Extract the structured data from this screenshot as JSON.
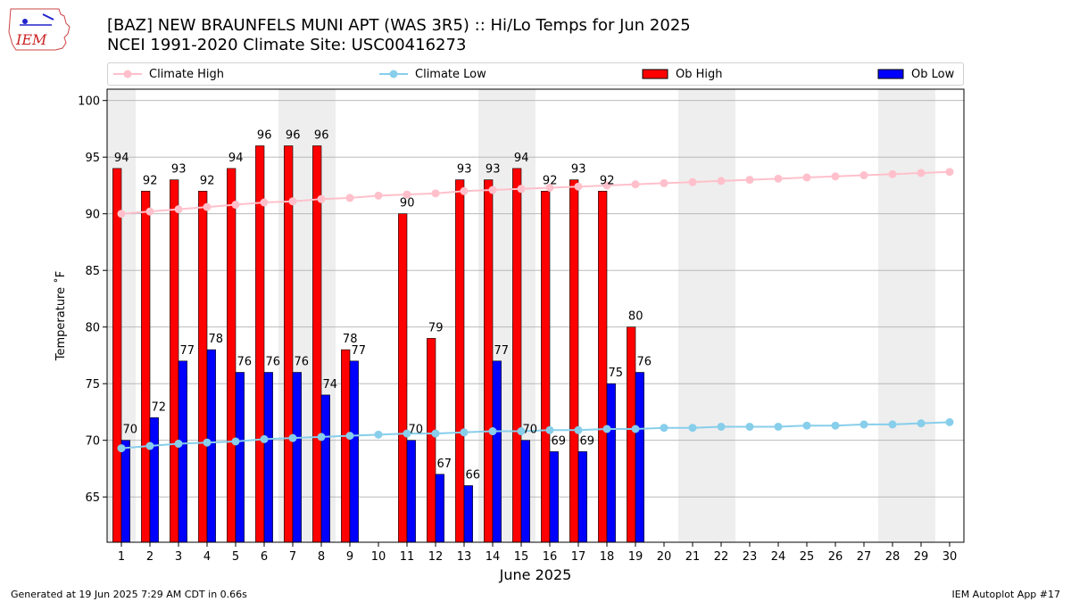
{
  "title_line1": "[BAZ] NEW BRAUNFELS MUNI APT (WAS 3R5) :: Hi/Lo Temps for Jun 2025",
  "title_line2": "NCEI 1991-2020 Climate Site: USC00416273",
  "logo_text": "IEM",
  "footer_left": "Generated at 19 Jun 2025 7:29 AM CDT in 0.66s",
  "footer_right": "IEM Autoplot App #17",
  "colors": {
    "ob_high": "#ff0000",
    "ob_low": "#0000ff",
    "climate_high": "#ffc0cb",
    "climate_low": "#87ceeb",
    "weekend_band": "#eeeeee",
    "grid": "#b0b0b0"
  },
  "chart_data": {
    "type": "bar",
    "xlabel": "June 2025",
    "ylabel": "Temperature ˚F",
    "xlim": [
      0.5,
      30.5
    ],
    "ylim": [
      61,
      101
    ],
    "yticks": [
      65,
      70,
      75,
      80,
      85,
      90,
      95,
      100
    ],
    "grid": "horizontal",
    "legend_placement": "top",
    "days": [
      1,
      2,
      3,
      4,
      5,
      6,
      7,
      8,
      9,
      10,
      11,
      12,
      13,
      14,
      15,
      16,
      17,
      18,
      19,
      20,
      21,
      22,
      23,
      24,
      25,
      26,
      27,
      28,
      29,
      30
    ],
    "weekend_bands": [
      [
        1,
        1
      ],
      [
        7,
        8
      ],
      [
        14,
        15
      ],
      [
        21,
        22
      ],
      [
        28,
        29
      ]
    ],
    "series": [
      {
        "name": "Climate High",
        "kind": "line",
        "values": [
          90.0,
          90.2,
          90.4,
          90.6,
          90.8,
          91.0,
          91.1,
          91.3,
          91.4,
          91.6,
          91.7,
          91.8,
          92.0,
          92.1,
          92.2,
          92.3,
          92.4,
          92.5,
          92.6,
          92.7,
          92.8,
          92.9,
          93.0,
          93.1,
          93.2,
          93.3,
          93.4,
          93.5,
          93.6,
          93.7
        ]
      },
      {
        "name": "Climate Low",
        "kind": "line",
        "values": [
          69.3,
          69.5,
          69.7,
          69.8,
          69.9,
          70.1,
          70.2,
          70.3,
          70.4,
          70.5,
          70.6,
          70.6,
          70.7,
          70.8,
          70.8,
          70.9,
          70.9,
          71.0,
          71.0,
          71.1,
          71.1,
          71.2,
          71.2,
          71.2,
          71.3,
          71.3,
          71.4,
          71.4,
          71.5,
          71.6
        ]
      },
      {
        "name": "Ob High",
        "kind": "bar",
        "values": [
          94,
          92,
          93,
          92,
          94,
          96,
          96,
          96,
          78,
          null,
          90,
          79,
          93,
          93,
          94,
          92,
          93,
          92,
          80,
          null,
          null,
          null,
          null,
          null,
          null,
          null,
          null,
          null,
          null,
          null
        ]
      },
      {
        "name": "Ob Low",
        "kind": "bar",
        "values": [
          70,
          72,
          77,
          78,
          76,
          76,
          76,
          74,
          77,
          null,
          70,
          67,
          66,
          77,
          70,
          69,
          69,
          75,
          76,
          null,
          null,
          null,
          null,
          null,
          null,
          null,
          null,
          null,
          null,
          null
        ]
      }
    ]
  }
}
